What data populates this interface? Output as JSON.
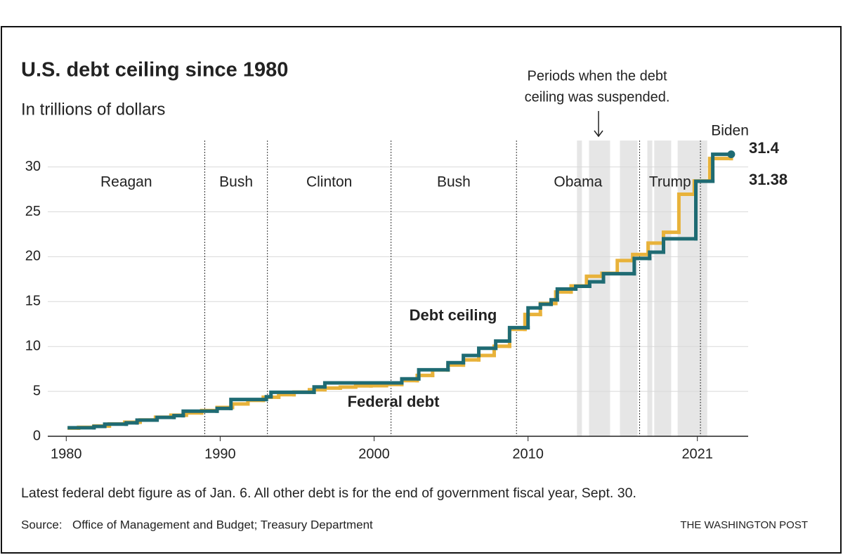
{
  "chart_data": {
    "type": "line",
    "step": "post",
    "title": "U.S. debt ceiling since 1980",
    "subtitle": "In trillions of dollars",
    "xlim": [
      1978.8,
      2024.3
    ],
    "xticks": [
      1980,
      1990,
      2000,
      2010,
      2021
    ],
    "ylim": [
      0,
      32
    ],
    "yticks": [
      0,
      5,
      10,
      15,
      20,
      25,
      30
    ],
    "grid": true,
    "series": [
      {
        "name": "Debt ceiling",
        "color": "#1f6b73",
        "x": [
          1980.2,
          1981.8,
          1982.5,
          1983.9,
          1984.6,
          1985.9,
          1987.0,
          1987.6,
          1989.8,
          1990.7,
          1993.0,
          1993.3,
          1996.1,
          1996.8,
          2001.8,
          2002.9,
          2004.8,
          2005.8,
          2006.8,
          2007.9,
          2008.8,
          2010.0,
          2010.8,
          2011.5,
          2011.9,
          2013.1,
          2014.0,
          2014.9,
          2016.9,
          2017.9,
          2018.8,
          2020.9,
          2022.0,
          2023.2
        ],
        "values": [
          0.95,
          1.1,
          1.35,
          1.5,
          1.8,
          2.1,
          2.3,
          2.8,
          3.1,
          4.1,
          4.4,
          4.9,
          5.5,
          5.95,
          6.4,
          7.4,
          8.2,
          9.0,
          9.8,
          10.6,
          12.1,
          14.3,
          14.7,
          15.2,
          16.4,
          16.7,
          17.2,
          18.1,
          19.8,
          20.5,
          22.0,
          28.4,
          31.4,
          31.4
        ]
      },
      {
        "name": "Federal debt",
        "color": "#e8b23a",
        "x": [
          1980.2,
          1980.8,
          1981.8,
          1982.8,
          1983.8,
          1984.8,
          1985.8,
          1986.8,
          1987.8,
          1988.8,
          1989.8,
          1990.8,
          1991.8,
          1992.8,
          1993.8,
          1994.8,
          1995.8,
          1996.8,
          1997.8,
          1998.8,
          1999.8,
          2000.8,
          2001.8,
          2002.8,
          2003.8,
          2004.8,
          2005.8,
          2006.8,
          2007.8,
          2008.8,
          2009.8,
          2010.8,
          2011.8,
          2012.8,
          2013.8,
          2014.8,
          2015.8,
          2016.8,
          2017.8,
          2018.8,
          2019.8,
          2020.8,
          2021.8,
          2023.2
        ],
        "values": [
          0.91,
          1.0,
          1.14,
          1.37,
          1.56,
          1.82,
          2.12,
          2.35,
          2.6,
          2.87,
          3.21,
          3.6,
          4.0,
          4.35,
          4.64,
          4.92,
          5.18,
          5.37,
          5.48,
          5.61,
          5.63,
          5.77,
          6.2,
          6.78,
          7.38,
          7.93,
          8.51,
          9.0,
          10.02,
          11.91,
          13.56,
          14.79,
          16.07,
          16.74,
          17.82,
          18.15,
          19.57,
          20.24,
          21.52,
          22.72,
          26.95,
          28.43,
          30.93,
          31.38
        ]
      }
    ],
    "suspensions": [
      [
        2013.18,
        2013.5
      ],
      [
        2013.96,
        2015.33
      ],
      [
        2015.97,
        2017.11
      ],
      [
        2017.75,
        2018.07
      ],
      [
        2018.2,
        2019.3
      ],
      [
        2019.72,
        2021.64
      ]
    ],
    "suspension_note": [
      "Periods when the debt",
      "ceiling was suspended."
    ],
    "term_boundaries": [
      1989.0,
      1993.07,
      2001.1,
      2009.25,
      2017.25,
      2021.2
    ],
    "presidents": [
      {
        "name": "Reagan",
        "color": "#c75a4a"
      },
      {
        "name": "Bush",
        "color": "#c75a4a"
      },
      {
        "name": "Clinton",
        "color": "#4f78a8"
      },
      {
        "name": "Bush",
        "color": "#c75a4a"
      },
      {
        "name": "Obama",
        "color": "#4f78a8"
      },
      {
        "name": "Trump",
        "color": "#c75a4a"
      },
      {
        "name": "Biden",
        "color": "#4f78a8"
      }
    ],
    "note": "Latest federal debt figure as of Jan. 6. All other debt is for the end of government fiscal year, Sept. 30.",
    "source_label": "Source:",
    "source": "Office of Management and Budget; Treasury Department",
    "credit": "THE WASHINGTON POST"
  }
}
